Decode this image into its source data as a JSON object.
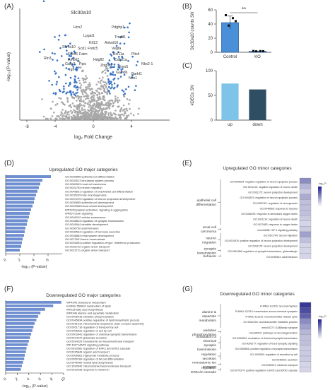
{
  "panels": {
    "A": "(A)",
    "B": "(B)",
    "C": "(C)",
    "D": "(D)",
    "E": "(E)",
    "F": "(F)",
    "G": "(G)"
  },
  "volcano": {
    "xlabel": "log₂ Fold Change",
    "ylabel": "-log₁₀(P-value)",
    "xticks": [
      "-8",
      "-4",
      "0",
      "4"
    ],
    "genes": [
      "Slc30a10",
      "Hcn2",
      "Pdgfrp1",
      "Lpgat1",
      "Tmod1",
      "Kif13",
      "Ankrd10",
      "Slc7a10",
      "Scd1",
      "Fndc5",
      "Vegfa",
      "Elovl6",
      "Faim",
      "Bcl11a",
      "Plin4",
      "Amotl2",
      "Hdgfl2",
      "Cdkn1a",
      "Nkx2-1",
      "Gata3",
      "Ppic",
      "Zbtb7a",
      "Fmo5",
      "Igfl",
      "Galntl6",
      "Barhl1",
      "Nos1",
      "Rln3"
    ]
  },
  "chart_data": [
    {
      "id": "B",
      "type": "bar",
      "categories": [
        "Control",
        "KO"
      ],
      "values": [
        42,
        1.5
      ],
      "ylabel": "Slc30a10 counts SN",
      "yticks": [
        "0",
        "20",
        "40",
        "60"
      ],
      "ylim": [
        0,
        60
      ],
      "significance": "**"
    },
    {
      "id": "C",
      "type": "bar",
      "categories": [
        "up",
        "down"
      ],
      "values": [
        74,
        62
      ],
      "ylabel": "#DEGs SN",
      "yticks": [
        "0",
        "50",
        "100"
      ],
      "ylim": [
        0,
        100
      ],
      "colors": [
        "#7ec3e8",
        "#2e4e63"
      ]
    },
    {
      "id": "D",
      "type": "bar",
      "orientation": "horizontal",
      "title": "Upregulated GO major categories",
      "xlabel": "-log₁₀ (P-value)",
      "xticks": [
        "0",
        "2",
        "4",
        "6"
      ],
      "xlim": [
        0,
        8
      ],
      "categories": [
        "GO:0030855 epithelial cell differentiation",
        "GO:0003013 circulatory system process",
        "GO:0060993 renal cell carcinoma",
        "GO:0001764 neuron migration",
        "GO:0045601 regulation of endothelial cell differentiation",
        "GO:0035239 tube morphogenesis",
        "GO:0007229 regulation of neuron projection development",
        "GO:0030855 epithelial cell development",
        "GO:0001568 blood vessel development",
        "WP2333 platelet activation, signaling & aggregation",
        "WP60 insulin signaling",
        "GO:0040012 cellular senescence",
        "GO:0048813 regulation of synaptic transmission",
        "GO:0045944 dendrite development",
        "GO:0050730 adult behavior",
        "GO:0030534 regulation of hormone secretion",
        "GO:0046883 renal system development",
        "GO:0072001 tissue homeostasis",
        "GO:0001894 positive regulation of type I interferon production",
        "GO:0032722 organic anion transport",
        "GO:0015711 organic anion transport"
      ],
      "values": [
        6.4,
        5.2,
        4.9,
        4.7,
        4.5,
        4.3,
        4.1,
        4.0,
        3.8,
        3.6,
        3.4,
        3.3,
        3.1,
        3.0,
        2.8,
        2.7,
        2.6,
        2.4,
        2.3,
        2.2,
        2.0
      ]
    },
    {
      "id": "F",
      "type": "bar",
      "orientation": "horizontal",
      "title": "Downregulated GO major categories",
      "xlabel": "-log₁₀ (P-value)",
      "xticks": [
        "0",
        "2",
        "4",
        "6",
        "8",
        "10"
      ],
      "xlim": [
        0,
        10
      ],
      "categories": [
        "WP4346 cholesterol metabolism",
        "R-MMU-556833 metabolism of lipids",
        "WP236 fatty acid biosynthesis",
        "WP4346 alanine and aspartate metabolism",
        "GO:0006418 oxidative phosphorylation",
        "GO:0045834 positive regulation of lipid biosynthetic process",
        "GO:0031012 mitochondrial respiratory chain complex assembly",
        "GO:0051716 regulation of transport by cell",
        "GO:0006631 regulation of cell by cell",
        "GO:0003341 regulation of chemical synaptic transmission",
        "GO:0014047 glutamate secretion",
        "GO:0034220 monoatomic ion transmembrane transport",
        "WP 4407 MAPK signaling pathway",
        "GO:0010562 regulation of ERK1 and ERK2 cascade",
        "GO:0015849 organic acid transport",
        "GO:0006661 triglyceride metabolic process",
        "GO:0050769 regulation of fat cell differentiation",
        "GO:0046460 neutral lipid biosynthesis",
        "GO:1990542 mitochondrial transmembrane transport",
        "GO:0010035 response to metal ion"
      ],
      "values": [
        9.6,
        8.2,
        6.8,
        6.0,
        5.6,
        5.3,
        5.0,
        4.8,
        4.6,
        4.4,
        4.2,
        4.0,
        3.8,
        3.6,
        3.5,
        3.3,
        3.2,
        3.0,
        2.8,
        2.6
      ]
    },
    {
      "id": "E",
      "type": "heatmap",
      "title": "Upregulated GO minor categories",
      "legend_title": "-log₁₀P",
      "groups": [
        {
          "name": "epithelial cell differentiation",
          "rows": [
            "GO:0045934: negative regulation of neuron apoptotic process",
            "GO:1901215: negative regulation of neuron death",
            "GO:0031175: neuron projection development",
            "GO:0043523: regulation of neuron apoptotic process",
            "GO:0050767: regulation of neurogenesis",
            "GO:0048666: response to hypoxia",
            "GO:0036293: response to decreased oxygen levels",
            "GO:1901214: regulation of neuron death",
            "GO:0070482: response to oxygen levels"
          ]
        },
        {
          "name": "renal cell carcinoma",
          "rows": [
            "mmu04066: HIF-1 signaling pathway"
          ]
        },
        {
          "name": "neuron migration",
          "rows": [
            "GO:0001764: neuron migration",
            "GO:0010976: positive regulation of neuron projection development",
            "GO:0031175: neuron projection development"
          ]
        },
        {
          "name": "synaptic transmission",
          "rows": [
            "GO:0051966: regulation of synaptic transmission, glutamatergic"
          ]
        },
        {
          "name": "behavior",
          "rows": [
            "GO:0030534: adult behavior"
          ]
        }
      ],
      "values": [
        0.55,
        0.35,
        0.25,
        0.4,
        0.3,
        0.3,
        0.3,
        0.25,
        0.2,
        0.25,
        0.45,
        0.3,
        0.2,
        0.2,
        0.2
      ]
    },
    {
      "id": "G",
      "type": "heatmap",
      "title": "Downregulated GO minor categories",
      "legend_title": "-log₁₀P",
      "groups": [
        {
          "name": "alanine & aspartate metabolism",
          "rows": [
            "R-MMU-112316: neuronal System",
            "R-MMU-112315: transmission across chemical synapses",
            "R-MMU-112310: neurotransmitter release cycle",
            "GO:0042133: neurotransmitter metabolic process",
            "mmu04727: GABAergic synapse"
          ]
        },
        {
          "name": "oxidative phosphorylation",
          "rows": [
            "mmu05022: pathways of neurodegeneration"
          ]
        },
        {
          "name": "modulation of chemical synaptic transmission",
          "rows": [
            "GO:0050804: modulation of chemical synaptic transmission",
            "GO:0099177: regulation of trans-synaptic signaling",
            "GO:0050806: positive regulation of synaptic transmission"
          ]
        },
        {
          "name": "regulation secretion",
          "rows": [
            "GO:1903530: regulation of secretion by cell",
            "GO:0046903: secretion"
          ]
        },
        {
          "name": "monoatomic ion transport",
          "rows": [
            "GO:0030001: metal ion transport"
          ]
        },
        {
          "name": "regulation ERK1/2 cascade",
          "rows": [
            "GO:0070374: positive regulation of ERK1 and ERK2 cascade"
          ]
        }
      ],
      "values": [
        0.95,
        0.85,
        0.75,
        0.55,
        0.45,
        0.35,
        0.3,
        0.3,
        0.25,
        0.25,
        0.25,
        0.2,
        0.2
      ]
    }
  ],
  "colors": {
    "bar_d": "#6f8fd0",
    "bar_f": "#6f8fd0",
    "bar_b": "#4a90d9",
    "heat_low": "#ffffff",
    "heat_high": "#2c2e8f"
  }
}
